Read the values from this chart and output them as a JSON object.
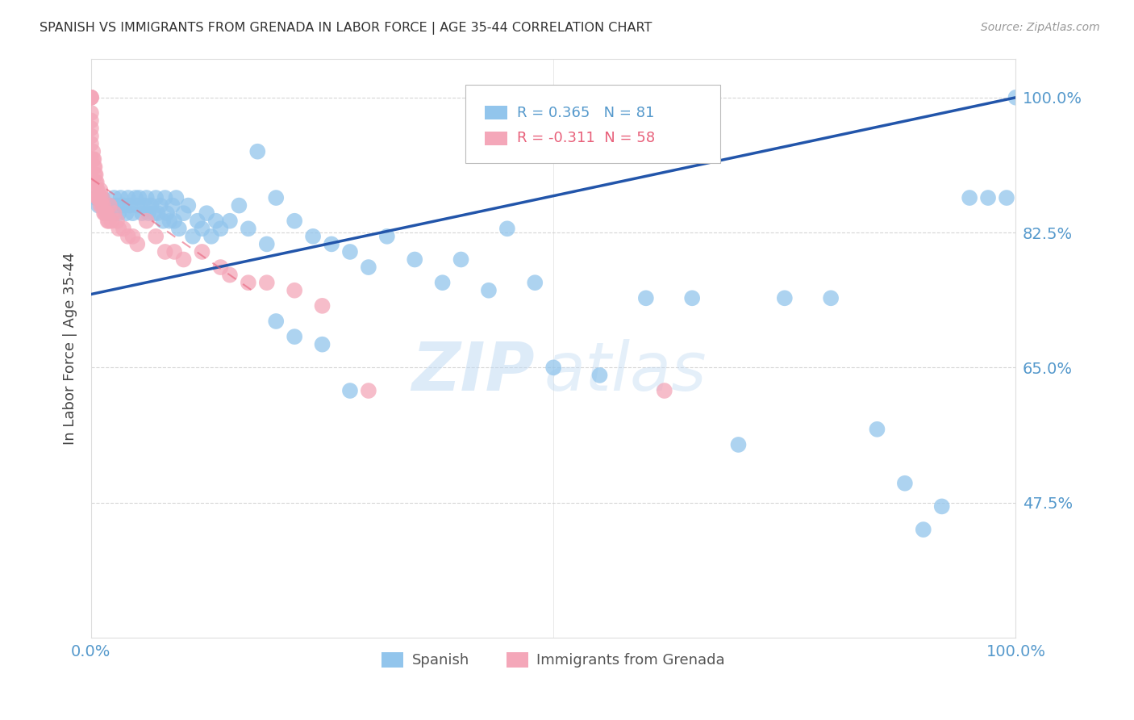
{
  "title": "SPANISH VS IMMIGRANTS FROM GRENADA IN LABOR FORCE | AGE 35-44 CORRELATION CHART",
  "source": "Source: ZipAtlas.com",
  "ylabel": "In Labor Force | Age 35-44",
  "xlim": [
    0.0,
    1.0
  ],
  "ylim": [
    0.3,
    1.05
  ],
  "yticks": [
    0.475,
    0.65,
    0.825,
    1.0
  ],
  "ytick_labels": [
    "47.5%",
    "65.0%",
    "82.5%",
    "100.0%"
  ],
  "xtick_positions": [
    0.0,
    0.1,
    0.2,
    0.3,
    0.4,
    0.5,
    0.6,
    0.7,
    0.8,
    0.9,
    1.0
  ],
  "xtick_labels": [
    "0.0%",
    "",
    "",
    "",
    "",
    "",
    "",
    "",
    "",
    "",
    "100.0%"
  ],
  "blue_color": "#92C5EC",
  "pink_color": "#F4A7B9",
  "blue_line_color": "#2255AA",
  "pink_line_color": "#E8607A",
  "axis_color": "#5599CC",
  "title_color": "#333333",
  "grid_color": "#CCCCCC",
  "watermark_zip": "ZIP",
  "watermark_atlas": "atlas",
  "legend_label_blue": "Spanish",
  "legend_label_pink": "Immigrants from Grenada",
  "legend_r_blue": "R = 0.365",
  "legend_n_blue": "N = 81",
  "legend_r_pink": "R = -0.311",
  "legend_n_pink": "N = 58",
  "blue_line_x": [
    0.0,
    1.0
  ],
  "blue_line_y": [
    0.745,
    1.0
  ],
  "pink_line_x": [
    0.0,
    0.18
  ],
  "pink_line_y": [
    0.895,
    0.745
  ],
  "blue_x": [
    0.005,
    0.008,
    0.012,
    0.015,
    0.018,
    0.02,
    0.025,
    0.028,
    0.03,
    0.032,
    0.035,
    0.038,
    0.04,
    0.042,
    0.045,
    0.048,
    0.05,
    0.052,
    0.055,
    0.058,
    0.06,
    0.062,
    0.065,
    0.068,
    0.07,
    0.072,
    0.075,
    0.078,
    0.08,
    0.082,
    0.085,
    0.088,
    0.09,
    0.092,
    0.095,
    0.1,
    0.105,
    0.11,
    0.115,
    0.12,
    0.125,
    0.13,
    0.135,
    0.14,
    0.15,
    0.16,
    0.17,
    0.18,
    0.19,
    0.2,
    0.22,
    0.24,
    0.26,
    0.28,
    0.3,
    0.32,
    0.35,
    0.38,
    0.4,
    0.43,
    0.45,
    0.48,
    0.5,
    0.55,
    0.6,
    0.65,
    0.7,
    0.75,
    0.8,
    0.85,
    0.88,
    0.9,
    0.92,
    0.95,
    0.97,
    0.99,
    1.0,
    0.2,
    0.22,
    0.25,
    0.28
  ],
  "blue_y": [
    0.87,
    0.86,
    0.87,
    0.86,
    0.85,
    0.86,
    0.87,
    0.86,
    0.85,
    0.87,
    0.86,
    0.85,
    0.87,
    0.86,
    0.85,
    0.87,
    0.86,
    0.87,
    0.85,
    0.86,
    0.87,
    0.85,
    0.86,
    0.85,
    0.87,
    0.85,
    0.86,
    0.84,
    0.87,
    0.85,
    0.84,
    0.86,
    0.84,
    0.87,
    0.83,
    0.85,
    0.86,
    0.82,
    0.84,
    0.83,
    0.85,
    0.82,
    0.84,
    0.83,
    0.84,
    0.86,
    0.83,
    0.93,
    0.81,
    0.87,
    0.84,
    0.82,
    0.81,
    0.8,
    0.78,
    0.82,
    0.79,
    0.76,
    0.79,
    0.75,
    0.83,
    0.76,
    0.65,
    0.64,
    0.74,
    0.74,
    0.55,
    0.74,
    0.74,
    0.57,
    0.5,
    0.44,
    0.47,
    0.87,
    0.87,
    0.87,
    1.0,
    0.71,
    0.69,
    0.68,
    0.62
  ],
  "pink_x": [
    0.0,
    0.0,
    0.0,
    0.0,
    0.0,
    0.0,
    0.0,
    0.0,
    0.0,
    0.002,
    0.002,
    0.003,
    0.003,
    0.004,
    0.004,
    0.005,
    0.005,
    0.006,
    0.006,
    0.007,
    0.007,
    0.008,
    0.008,
    0.01,
    0.01,
    0.01,
    0.012,
    0.012,
    0.013,
    0.014,
    0.015,
    0.016,
    0.017,
    0.018,
    0.019,
    0.02,
    0.022,
    0.025,
    0.028,
    0.03,
    0.035,
    0.04,
    0.045,
    0.05,
    0.06,
    0.07,
    0.08,
    0.09,
    0.1,
    0.12,
    0.14,
    0.15,
    0.17,
    0.19,
    0.22,
    0.25,
    0.3,
    0.62
  ],
  "pink_y": [
    1.0,
    1.0,
    1.0,
    0.98,
    0.97,
    0.96,
    0.95,
    0.94,
    0.92,
    0.93,
    0.92,
    0.92,
    0.91,
    0.91,
    0.9,
    0.9,
    0.89,
    0.89,
    0.88,
    0.88,
    0.87,
    0.87,
    0.87,
    0.88,
    0.87,
    0.86,
    0.87,
    0.86,
    0.86,
    0.85,
    0.85,
    0.85,
    0.85,
    0.84,
    0.84,
    0.86,
    0.84,
    0.85,
    0.84,
    0.83,
    0.83,
    0.82,
    0.82,
    0.81,
    0.84,
    0.82,
    0.8,
    0.8,
    0.79,
    0.8,
    0.78,
    0.77,
    0.76,
    0.76,
    0.75,
    0.73,
    0.62,
    0.62
  ],
  "background_color": "#FFFFFF"
}
